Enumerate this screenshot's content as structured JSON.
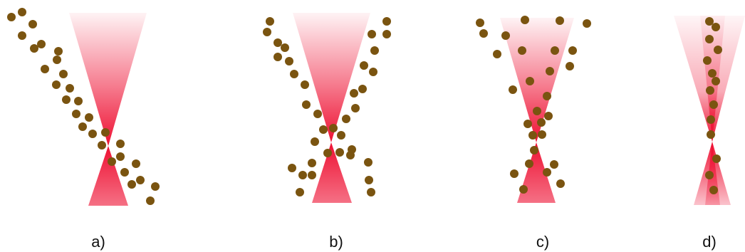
{
  "colors": {
    "beam": "#ee1133",
    "particle": "#7a5410",
    "background": "#ffffff",
    "label": "#111111"
  },
  "panels": [
    {
      "id": "a",
      "label": "a)"
    },
    {
      "id": "b",
      "label": "b)"
    },
    {
      "id": "c",
      "label": "c)"
    },
    {
      "id": "d",
      "label": "d)"
    }
  ]
}
